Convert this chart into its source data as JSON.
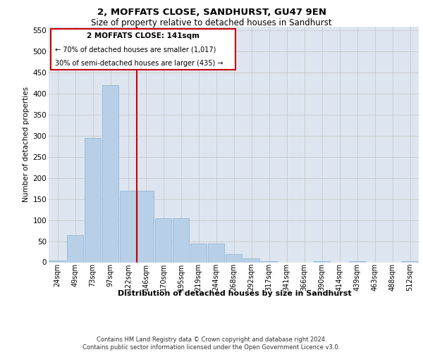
{
  "title1": "2, MOFFATS CLOSE, SANDHURST, GU47 9EN",
  "title2": "Size of property relative to detached houses in Sandhurst",
  "xlabel": "Distribution of detached houses by size in Sandhurst",
  "ylabel": "Number of detached properties",
  "footer1": "Contains HM Land Registry data © Crown copyright and database right 2024.",
  "footer2": "Contains public sector information licensed under the Open Government Licence v3.0.",
  "annotation_line1": "2 MOFFATS CLOSE: 141sqm",
  "annotation_line2": "← 70% of detached houses are smaller (1,017)",
  "annotation_line3": "30% of semi-detached houses are larger (435) →",
  "bar_color": "#b8cfe8",
  "bar_edge_color": "#8aafd0",
  "grid_color": "#c8c8c8",
  "bg_color": "#dde6f0",
  "vline_color": "#cc0000",
  "categories": [
    "24sqm",
    "49sqm",
    "73sqm",
    "97sqm",
    "122sqm",
    "146sqm",
    "170sqm",
    "195sqm",
    "219sqm",
    "244sqm",
    "268sqm",
    "292sqm",
    "317sqm",
    "341sqm",
    "366sqm",
    "390sqm",
    "414sqm",
    "439sqm",
    "463sqm",
    "488sqm",
    "512sqm"
  ],
  "values": [
    5,
    65,
    295,
    420,
    170,
    170,
    105,
    105,
    45,
    45,
    20,
    10,
    3,
    0,
    0,
    2,
    0,
    2,
    0,
    0,
    2
  ],
  "ylim": [
    0,
    560
  ],
  "yticks": [
    0,
    50,
    100,
    150,
    200,
    250,
    300,
    350,
    400,
    450,
    500,
    550
  ],
  "vline_position": 4.5
}
